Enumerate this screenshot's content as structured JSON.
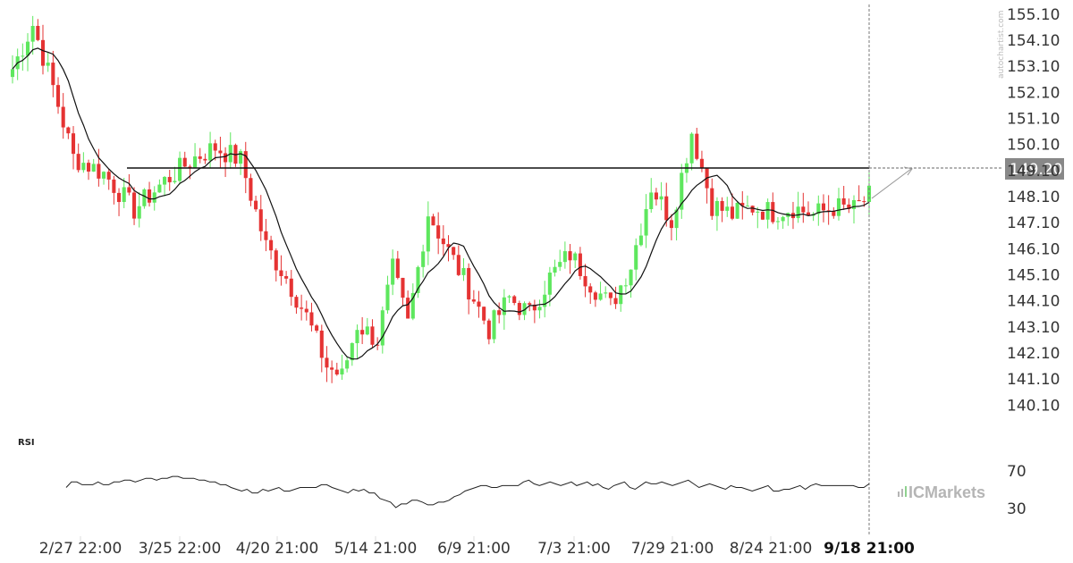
{
  "chart_data": {
    "type": "candlestick",
    "price_axis": {
      "ylim": [
        139.6,
        155.3
      ],
      "ticks": [
        "155.10",
        "154.10",
        "153.10",
        "152.10",
        "151.10",
        "150.10",
        "149.10",
        "148.10",
        "147.10",
        "146.10",
        "145.10",
        "144.10",
        "143.10",
        "142.10",
        "141.10",
        "140.10"
      ]
    },
    "x_tick_labels": [
      "2/27 22:00",
      "3/25 22:00",
      "4/20 21:00",
      "5/14 21:00",
      "6/9 21:00",
      "7/3 21:00",
      "7/29 21:00",
      "8/24 21:00",
      "9/18 21:00"
    ],
    "level": {
      "value": 149.2,
      "label": "149.20"
    },
    "moving_average": "overlay",
    "rsi": {
      "title": "RSI",
      "ticks": [
        "70",
        "30"
      ],
      "ylim": [
        20,
        80
      ],
      "values": [
        52,
        58,
        58,
        55,
        55,
        55,
        58,
        55,
        55,
        58,
        58,
        60,
        60,
        58,
        60,
        62,
        62,
        60,
        62,
        62,
        64,
        64,
        62,
        62,
        62,
        60,
        60,
        58,
        58,
        55,
        55,
        52,
        50,
        48,
        50,
        46,
        46,
        50,
        48,
        50,
        52,
        48,
        48,
        50,
        52,
        52,
        52,
        52,
        55,
        55,
        52,
        50,
        48,
        46,
        50,
        48,
        50,
        46,
        46,
        40,
        38,
        36,
        30,
        34,
        34,
        38,
        38,
        36,
        33,
        33,
        36,
        36,
        38,
        42,
        44,
        48,
        50,
        52,
        54,
        54,
        52,
        52,
        54,
        54,
        54,
        54,
        58,
        60,
        56,
        54,
        56,
        58,
        56,
        54,
        56,
        58,
        54,
        56,
        58,
        54,
        56,
        52,
        50,
        54,
        56,
        58,
        52,
        50,
        54,
        58,
        56,
        56,
        58,
        56,
        54,
        56,
        58,
        60,
        56,
        52,
        54,
        56,
        54,
        52,
        50,
        54,
        52,
        52,
        50,
        48,
        50,
        52,
        54,
        48,
        48,
        50,
        50,
        52,
        54,
        50,
        54,
        56,
        54,
        54,
        54,
        54,
        54,
        54,
        54,
        52,
        52,
        56
      ]
    },
    "colors": {
      "up": "#5ee75e",
      "down": "#e53333",
      "ma": "#111111",
      "level": "#111111",
      "tag_bg": "#888888",
      "rsi": "#222222"
    },
    "branding": {
      "watermark": "autochartist.com",
      "logo": "ICMarkets"
    }
  }
}
